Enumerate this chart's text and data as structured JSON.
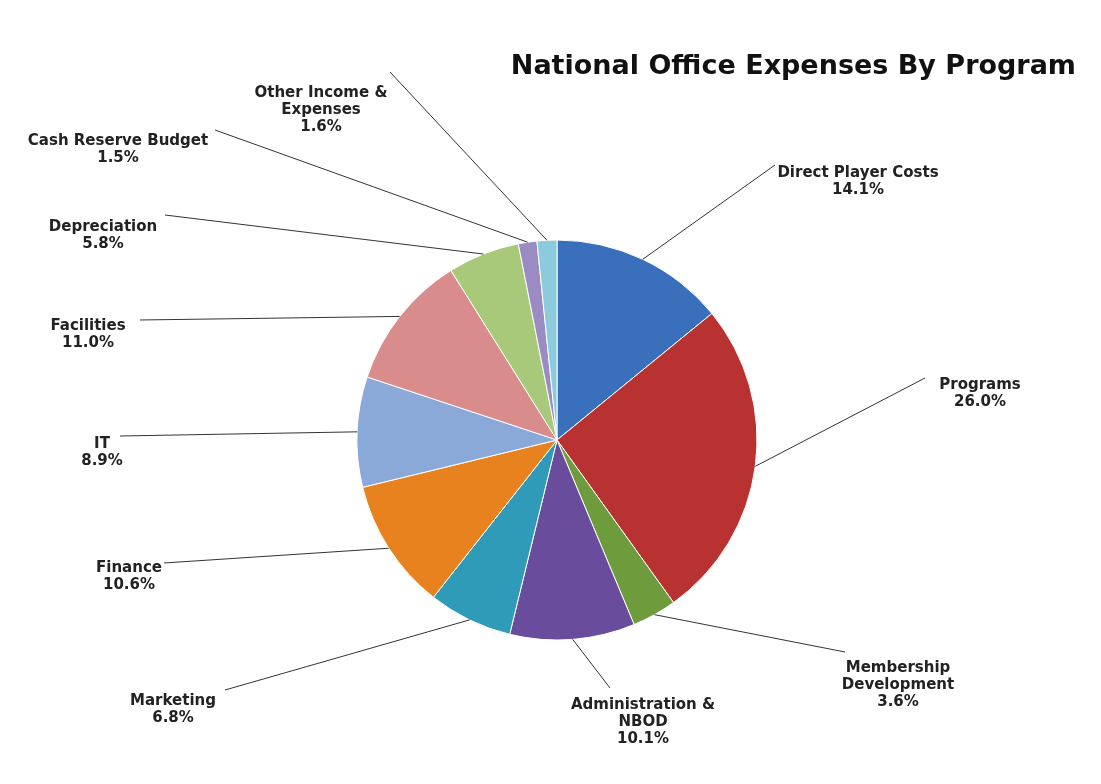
{
  "chart_data": {
    "type": "pie",
    "title": "National Office Expenses By Program",
    "categories": [
      "Direct Player Costs",
      "Programs",
      "Membership Development",
      "Administration & NBOD",
      "Marketing",
      "Finance",
      "IT",
      "Facilities",
      "Depreciation",
      "Cash Reserve Budget",
      "Other Income & Expenses"
    ],
    "values": [
      14.1,
      26.0,
      3.6,
      10.1,
      6.8,
      10.6,
      8.9,
      11.0,
      5.8,
      1.5,
      1.6
    ],
    "value_labels": [
      "14.1%",
      "26.0%",
      "3.6%",
      "10.1%",
      "6.8%",
      "10.6%",
      "8.9%",
      "11.0%",
      "5.8%",
      "1.5%",
      "1.6%"
    ],
    "colors": [
      "#3a70bb",
      "#b83232",
      "#6e9c3c",
      "#6a4c9c",
      "#2f9bb8",
      "#e8821f",
      "#8aa8d8",
      "#d98c8c",
      "#a9c97a",
      "#9a8cc2",
      "#8ccbdb"
    ]
  }
}
